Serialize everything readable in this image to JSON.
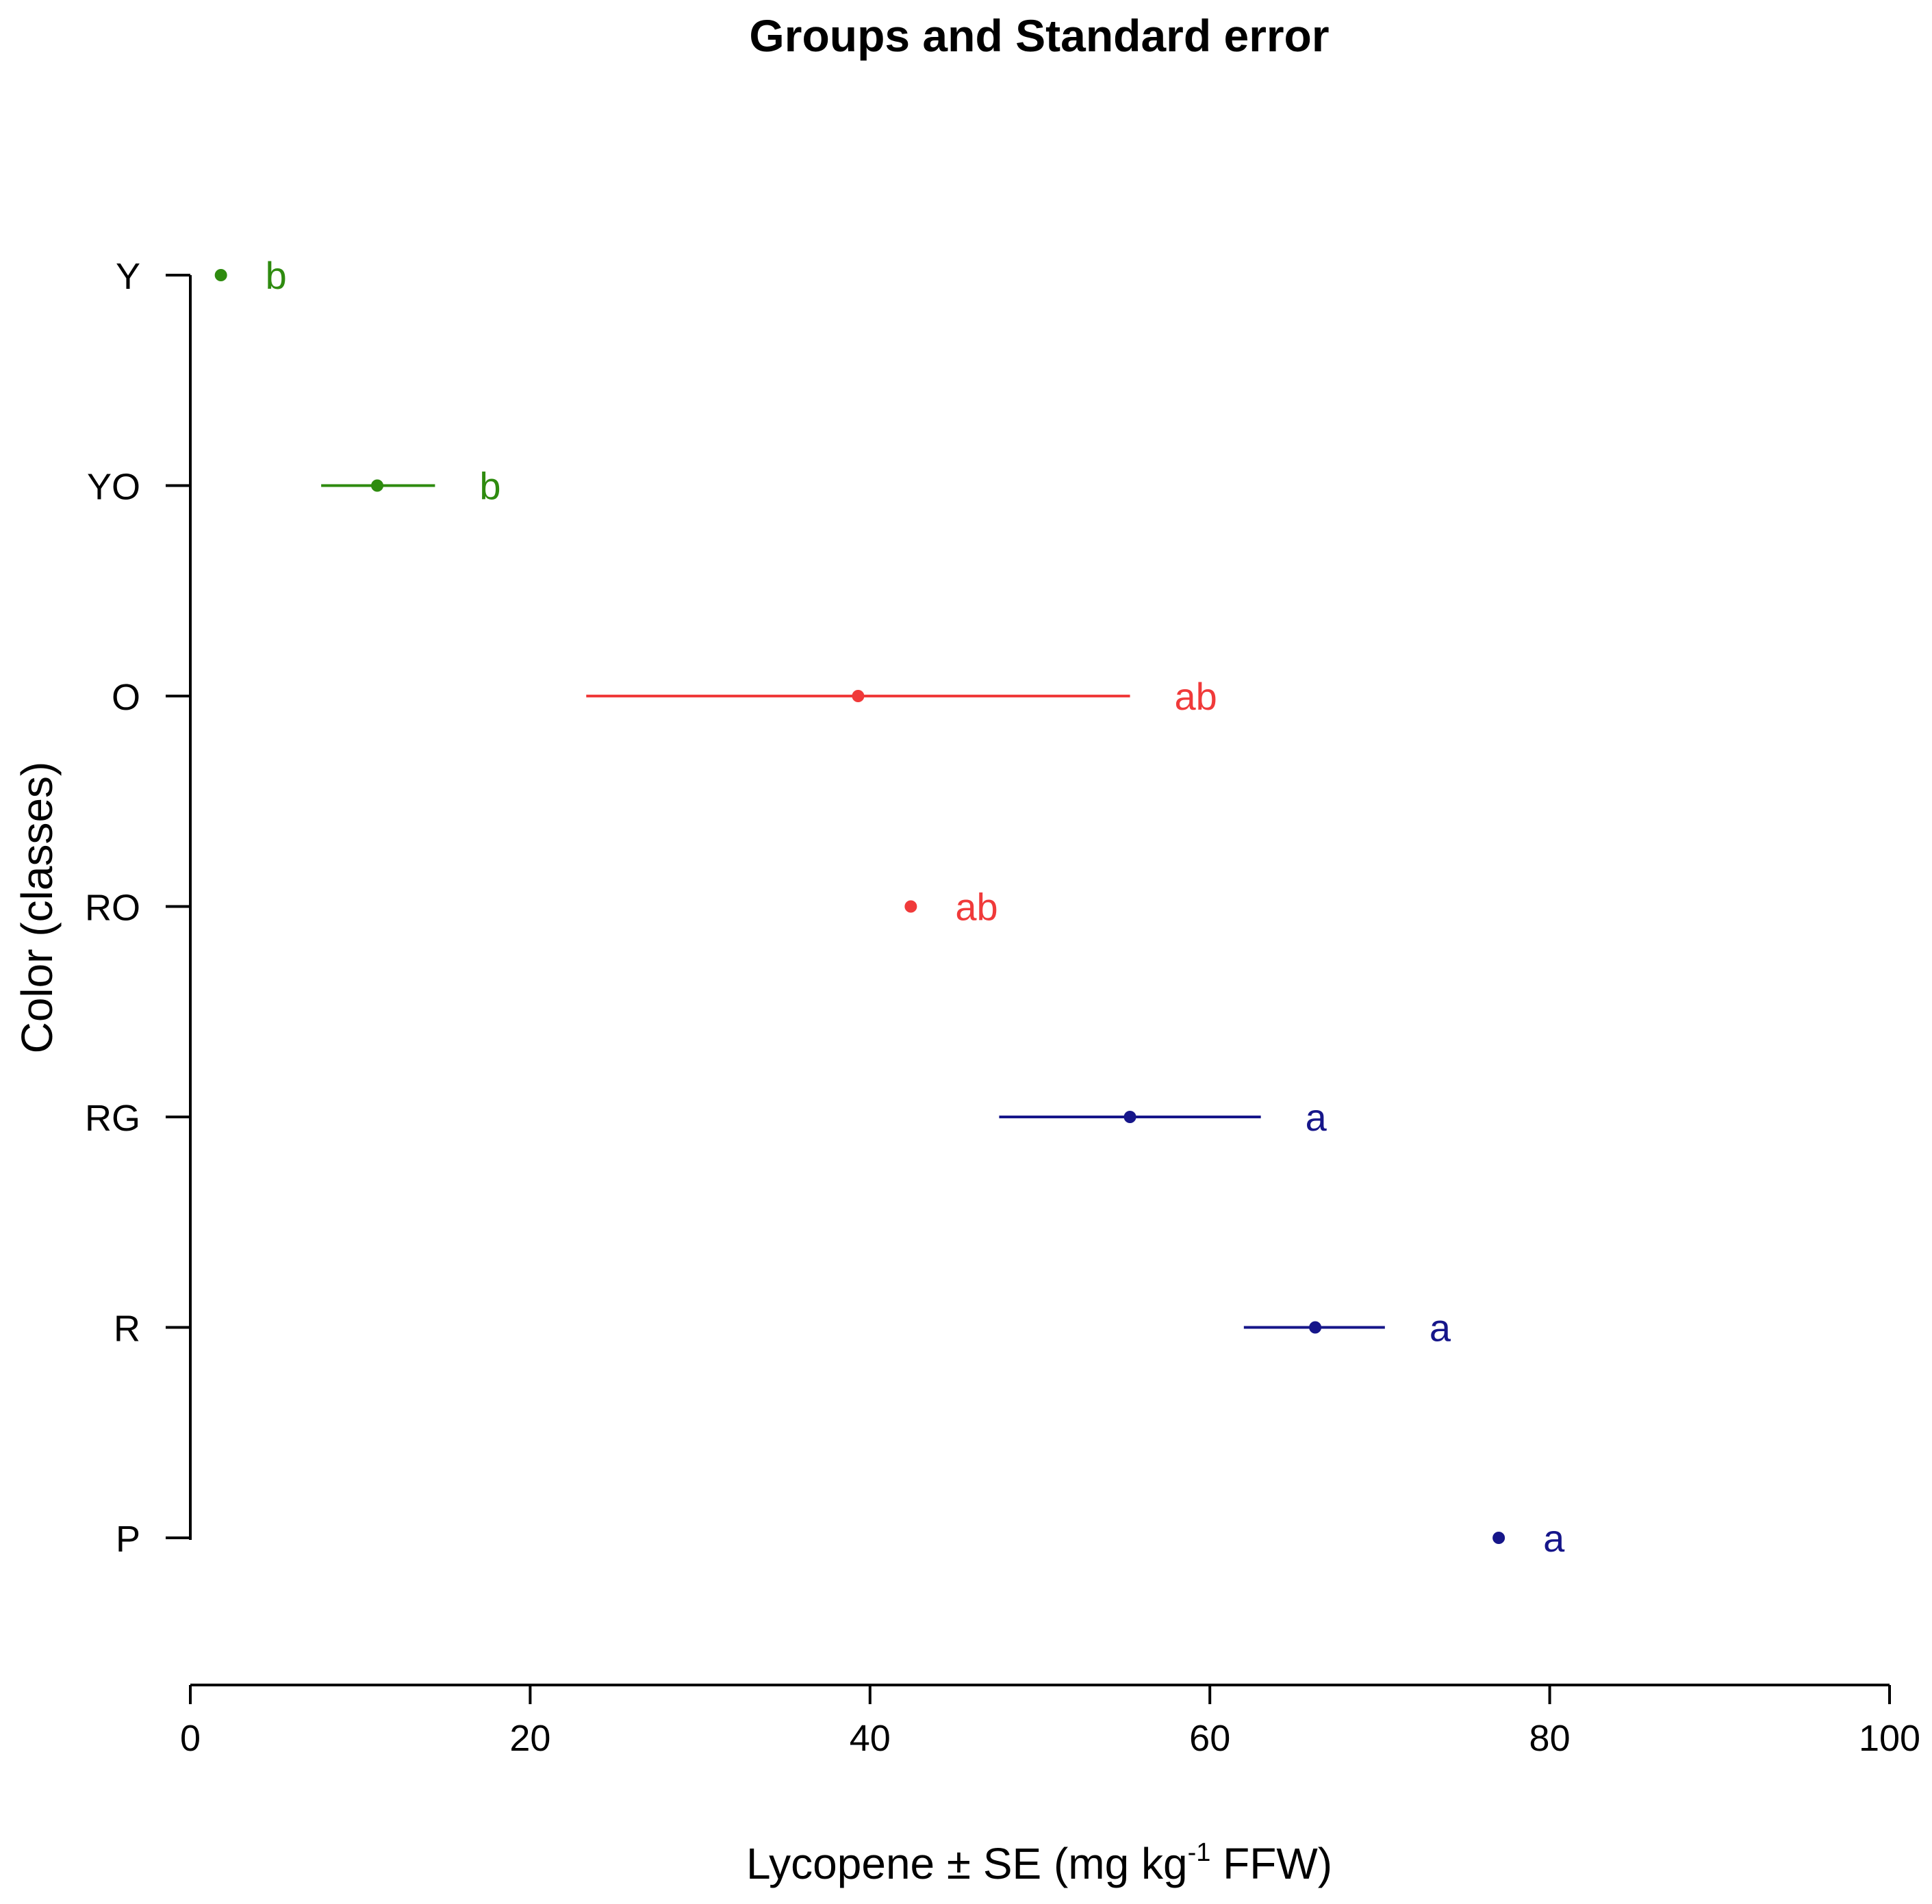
{
  "chart_data": {
    "type": "scatter",
    "title": "Groups and Standard error",
    "xlabel": "Lycopene ± SE (mg kg",
    "xlabel_superscript": "-1",
    "xlabel_suffix": " FFW)",
    "ylabel": "Color (classes)",
    "xlim": [
      0,
      100
    ],
    "x_ticks": [
      0,
      20,
      40,
      60,
      80,
      100
    ],
    "categories": [
      "Y",
      "YO",
      "O",
      "RO",
      "RG",
      "R",
      "P"
    ],
    "points": [
      {
        "category": "Y",
        "mean": 1.8,
        "se_low": 1.8,
        "se_high": 1.8,
        "group": "b",
        "color": "#2e8b0f"
      },
      {
        "category": "YO",
        "mean": 11.0,
        "se_low": 7.7,
        "se_high": 14.4,
        "group": "b",
        "color": "#2e8b0f"
      },
      {
        "category": "O",
        "mean": 39.3,
        "se_low": 23.3,
        "se_high": 55.3,
        "group": "ab",
        "color": "#f03a3a"
      },
      {
        "category": "RO",
        "mean": 42.4,
        "se_low": 42.4,
        "se_high": 42.4,
        "group": "ab",
        "color": "#f03a3a"
      },
      {
        "category": "RG",
        "mean": 55.3,
        "se_low": 47.6,
        "se_high": 63.0,
        "group": "a",
        "color": "#16168a"
      },
      {
        "category": "R",
        "mean": 66.2,
        "se_low": 62.0,
        "se_high": 70.3,
        "group": "a",
        "color": "#16168a"
      },
      {
        "category": "P",
        "mean": 77.0,
        "se_low": 77.0,
        "se_high": 77.0,
        "group": "a",
        "color": "#16168a"
      }
    ]
  }
}
